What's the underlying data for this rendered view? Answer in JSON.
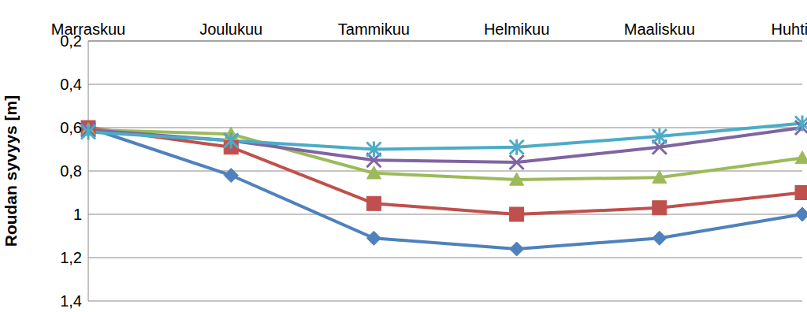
{
  "chart_data": {
    "type": "line",
    "y_label": "Roudan syvyys [m]",
    "categories": [
      "Marraskuu",
      "Joulukuu",
      "Tammikuu",
      "Helmikuu",
      "Maaliskuu",
      "Huhtikuu"
    ],
    "series": [
      {
        "color": "#4f81bd",
        "marker": "diamond",
        "values": [
          0.6,
          0.82,
          1.11,
          1.16,
          1.11,
          1.0
        ]
      },
      {
        "color": "#c0504d",
        "marker": "square",
        "values": [
          0.6,
          0.69,
          0.95,
          1.0,
          0.97,
          0.9
        ]
      },
      {
        "color": "#9bbb59",
        "marker": "triangle",
        "values": [
          0.61,
          0.63,
          0.81,
          0.84,
          0.83,
          0.74
        ]
      },
      {
        "color": "#8064a2",
        "marker": "x",
        "values": [
          0.61,
          0.66,
          0.75,
          0.76,
          0.69,
          0.6
        ]
      },
      {
        "color": "#4bacc6",
        "marker": "star",
        "values": [
          0.62,
          0.66,
          0.7,
          0.69,
          0.64,
          0.58
        ]
      }
    ],
    "ylim": [
      0.2,
      1.4
    ],
    "yticks": [
      {
        "value": 0.2,
        "label": "0,2"
      },
      {
        "value": 0.4,
        "label": "0,4"
      },
      {
        "value": 0.6,
        "label": "0,6"
      },
      {
        "value": 0.8,
        "label": "0,8"
      },
      1,
      {
        "value": 1.2,
        "label": "1,2"
      },
      {
        "value": 1.4,
        "label": "1,4"
      }
    ],
    "grid": true,
    "legend": null
  }
}
